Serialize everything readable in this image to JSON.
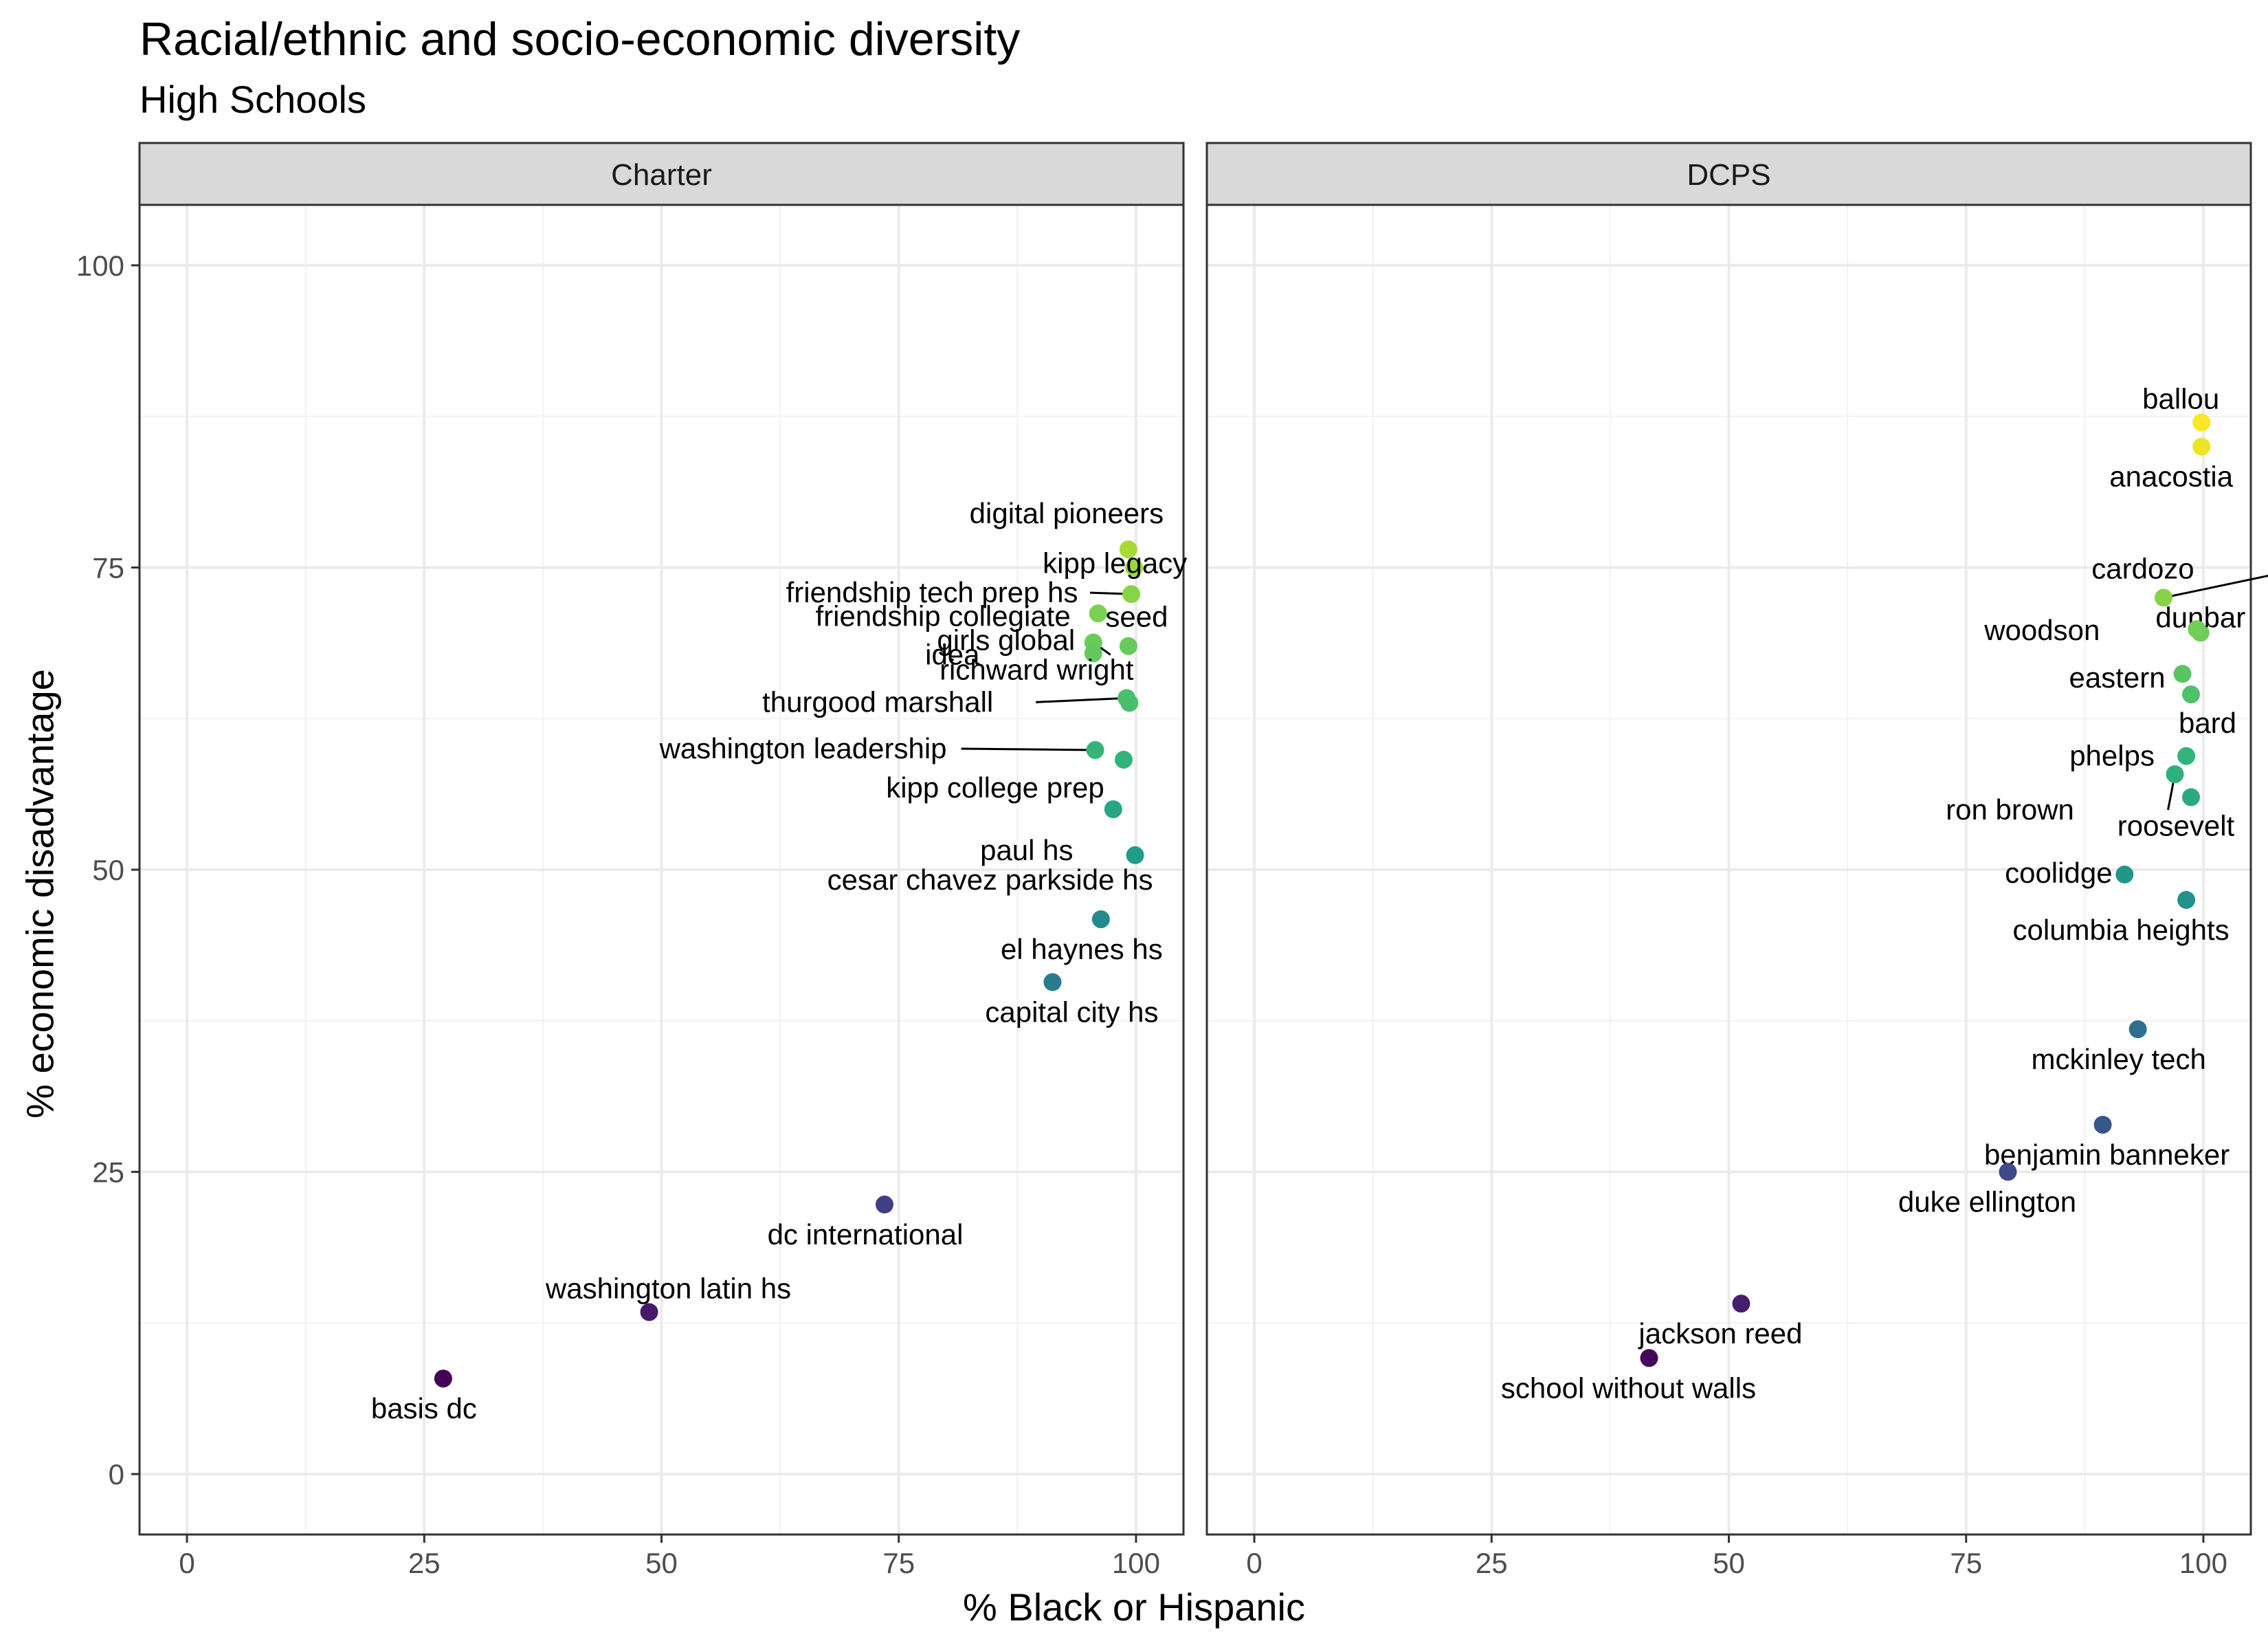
{
  "chart_data": {
    "type": "scatter",
    "title": "Racial/ethnic and socio-economic diversity",
    "subtitle": "High Schools",
    "xlabel": "% Black or Hispanic",
    "ylabel": "% economic disadvantage",
    "xlim": [
      -5,
      105
    ],
    "ylim": [
      -5,
      105
    ],
    "x_ticks": [
      0,
      25,
      50,
      75,
      100
    ],
    "y_ticks": [
      0,
      25,
      50,
      75,
      100
    ],
    "grid": true,
    "color_scale": "viridis (by % economic disadvantage)",
    "panels": [
      {
        "name": "Charter",
        "points": [
          {
            "label": "digital pioneers",
            "x": 99.2,
            "y": 76.5
          },
          {
            "label": "kipp legacy",
            "x": 99.8,
            "y": 75.0
          },
          {
            "label": "friendship tech prep hs",
            "x": 99.5,
            "y": 72.8
          },
          {
            "label": "friendship collegiate",
            "x": 96.0,
            "y": 71.2
          },
          {
            "label": "seed",
            "x": 99.2,
            "y": 68.5
          },
          {
            "label": "idea",
            "x": 95.5,
            "y": 68.8
          },
          {
            "label": "girls global",
            "x": 95.5,
            "y": 67.9
          },
          {
            "label": "thurgood marshall",
            "x": 99.0,
            "y": 64.2
          },
          {
            "label": "richward wright",
            "x": 99.3,
            "y": 63.8
          },
          {
            "label": "washington leadership",
            "x": 95.7,
            "y": 59.9
          },
          {
            "label": "kipp college prep",
            "x": 98.7,
            "y": 59.1
          },
          {
            "label": "paul hs",
            "x": 97.6,
            "y": 55.0
          },
          {
            "label": "cesar chavez parkside hs",
            "x": 99.9,
            "y": 51.2
          },
          {
            "label": "el haynes hs",
            "x": 96.3,
            "y": 45.9
          },
          {
            "label": "capital city hs",
            "x": 91.2,
            "y": 40.7
          },
          {
            "label": "dc international",
            "x": 73.5,
            "y": 22.3
          },
          {
            "label": "washington latin hs",
            "x": 48.7,
            "y": 13.4
          },
          {
            "label": "basis dc",
            "x": 27.0,
            "y": 7.9
          }
        ]
      },
      {
        "name": "DCPS",
        "points": [
          {
            "label": "ballou",
            "x": 99.8,
            "y": 87.0
          },
          {
            "label": "anacostia",
            "x": 99.8,
            "y": 85.0
          },
          {
            "label": "cardozo",
            "x": 95.8,
            "y": 72.5
          },
          {
            "label": "dunbar",
            "x": 99.7,
            "y": 69.6
          },
          {
            "label": "woodson",
            "x": 99.3,
            "y": 69.9
          },
          {
            "label": "eastern",
            "x": 97.8,
            "y": 66.2
          },
          {
            "label": "bard",
            "x": 98.7,
            "y": 64.5
          },
          {
            "label": "phelps",
            "x": 98.2,
            "y": 59.4
          },
          {
            "label": "ron brown",
            "x": 97.0,
            "y": 57.9
          },
          {
            "label": "roosevelt",
            "x": 98.7,
            "y": 56.0
          },
          {
            "label": "coolidge",
            "x": 91.7,
            "y": 49.6
          },
          {
            "label": "columbia heights",
            "x": 98.2,
            "y": 47.5
          },
          {
            "label": "mckinley tech",
            "x": 93.1,
            "y": 36.8
          },
          {
            "label": "benjamin banneker",
            "x": 89.4,
            "y": 28.9
          },
          {
            "label": "duke ellington",
            "x": 79.4,
            "y": 25.0
          },
          {
            "label": "jackson reed",
            "x": 51.3,
            "y": 14.1
          },
          {
            "label": "school without walls",
            "x": 41.6,
            "y": 9.6
          }
        ]
      }
    ]
  }
}
